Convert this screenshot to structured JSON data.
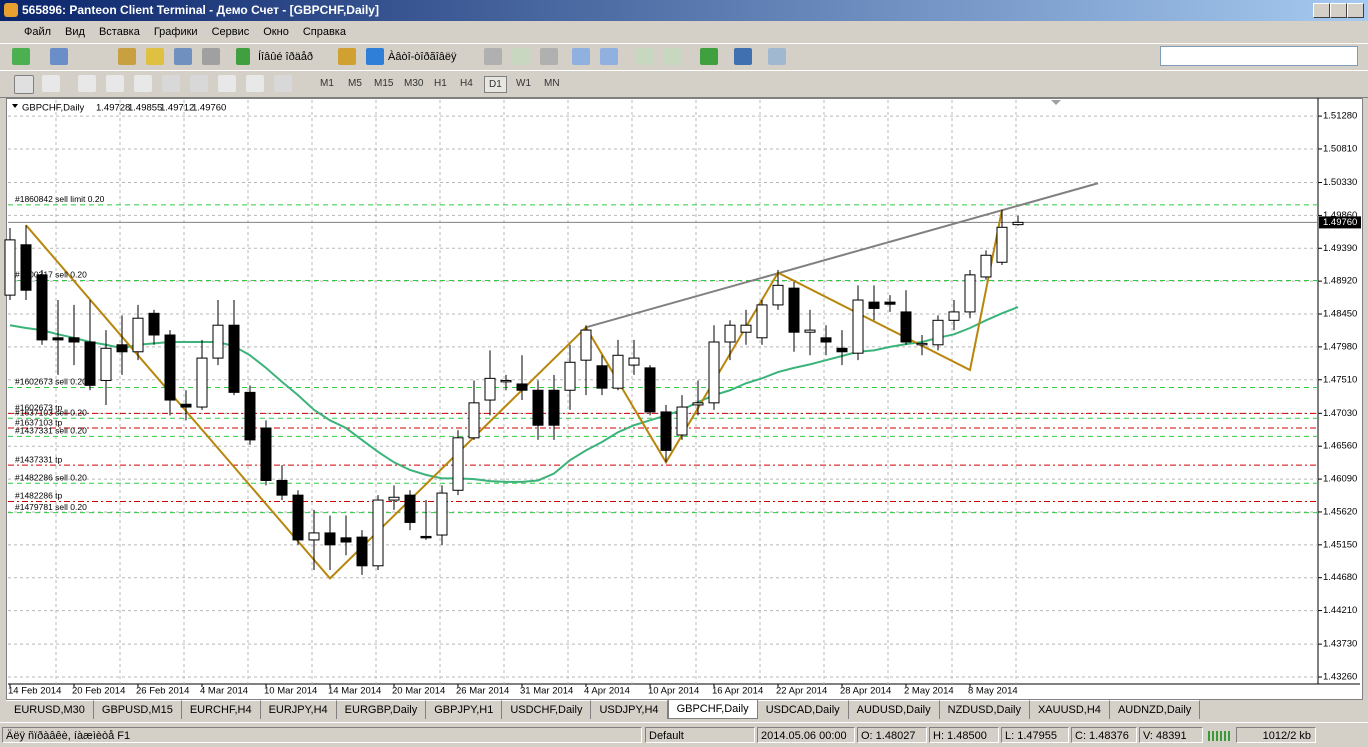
{
  "window": {
    "title": "565896: Panteon Client Terminal - Демо Счет - [GBPCHF,Daily]"
  },
  "menu": [
    "Файл",
    "Вид",
    "Вставка",
    "Графики",
    "Сервис",
    "Окно",
    "Справка"
  ],
  "toolbar": {
    "new_order": "Íîâûé îðäåð",
    "auto_trading": "Àâòî-òîðãîâëÿ",
    "timeframes": [
      "M1",
      "M5",
      "M15",
      "M30",
      "H1",
      "H4",
      "D1",
      "W1",
      "MN"
    ],
    "active_timeframe": 6
  },
  "chart_data": {
    "type": "candlestick",
    "symbol": "GBPCHF,Daily",
    "header_quote": [
      "1.49728",
      "1.49855",
      "1.49712",
      "1.49760"
    ],
    "categories": [
      "14 Feb 2014",
      null,
      null,
      null,
      "20 Feb 2014",
      null,
      null,
      null,
      "26 Feb 2014",
      null,
      null,
      null,
      "4 Mar 2014",
      null,
      null,
      null,
      "10 Mar 2014",
      null,
      null,
      null,
      "14 Mar 2014",
      null,
      null,
      null,
      "20 Mar 2014",
      null,
      null,
      null,
      "26 Mar 2014",
      null,
      null,
      null,
      "31 Mar 2014",
      null,
      null,
      null,
      "4 Apr 2014",
      null,
      null,
      null,
      "10 Apr 2014",
      null,
      null,
      null,
      "16 Apr 2014",
      null,
      null,
      null,
      "22 Apr 2014",
      null,
      null,
      null,
      "28 Apr 2014",
      null,
      null,
      null,
      "2 May 2014",
      null,
      null,
      null,
      "8 May 2014",
      null,
      null,
      null
    ],
    "open": [
      1.4872,
      1.4944,
      1.4901,
      1.4811,
      1.4811,
      1.4805,
      1.475,
      1.4801,
      1.4791,
      1.4846,
      1.4815,
      1.4716,
      1.4712,
      1.4782,
      1.4829,
      1.4733,
      1.4682,
      1.4607,
      1.4586,
      1.4522,
      1.4532,
      1.4525,
      1.4526,
      1.4485,
      1.4579,
      1.4586,
      1.4527,
      1.4529,
      1.4593,
      1.4668,
      1.4722,
      1.4748,
      1.4745,
      1.4736,
      1.4736,
      1.4736,
      1.4779,
      1.4771,
      1.4739,
      1.4772,
      1.4768,
      1.4705,
      1.4672,
      1.4715,
      1.4718,
      1.4805,
      1.4819,
      1.4811,
      1.4858,
      1.4882,
      1.4819,
      1.4811,
      1.4796,
      1.4789,
      1.4862,
      1.4862,
      1.4848,
      1.4801,
      1.4801,
      1.4836,
      1.4848,
      1.4898,
      1.4919,
      1.49728
    ],
    "high": [
      1.4968,
      1.4972,
      1.4908,
      1.4865,
      1.4858,
      1.4865,
      1.4822,
      1.4843,
      1.4858,
      1.4851,
      1.4822,
      1.4736,
      1.4808,
      1.4865,
      1.4865,
      1.4743,
      1.4693,
      1.4629,
      1.4593,
      1.4565,
      1.4557,
      1.4557,
      1.4536,
      1.4586,
      1.46,
      1.4593,
      1.4579,
      1.46,
      1.4679,
      1.475,
      1.4793,
      1.4758,
      1.4786,
      1.475,
      1.4758,
      1.4801,
      1.4829,
      1.4786,
      1.4808,
      1.4808,
      1.4772,
      1.4715,
      1.4729,
      1.475,
      1.4829,
      1.4836,
      1.4851,
      1.4865,
      1.4908,
      1.4891,
      1.4851,
      1.4829,
      1.4822,
      1.4886,
      1.4886,
      1.4872,
      1.4879,
      1.4815,
      1.4843,
      1.4865,
      1.4908,
      1.4936,
      1.4994,
      1.49855
    ],
    "low": [
      1.4865,
      1.4865,
      1.4801,
      1.4758,
      1.4772,
      1.4736,
      1.4715,
      1.4758,
      1.4779,
      1.4801,
      1.47,
      1.4693,
      1.4708,
      1.4772,
      1.4729,
      1.4658,
      1.46,
      1.4579,
      1.4515,
      1.4479,
      1.4479,
      1.45,
      1.4472,
      1.4479,
      1.4565,
      1.4536,
      1.4522,
      1.4515,
      1.4586,
      1.4665,
      1.47,
      1.4736,
      1.4722,
      1.4665,
      1.4665,
      1.4708,
      1.4729,
      1.4729,
      1.4736,
      1.4758,
      1.47,
      1.4633,
      1.4665,
      1.47,
      1.4708,
      1.4779,
      1.4801,
      1.4801,
      1.4851,
      1.4791,
      1.4786,
      1.4786,
      1.4772,
      1.4779,
      1.4836,
      1.4848,
      1.4801,
      1.4786,
      1.4793,
      1.4822,
      1.4839,
      1.4894,
      1.4915,
      1.49712
    ],
    "close": [
      1.4951,
      1.4879,
      1.4808,
      1.4808,
      1.4805,
      1.4743,
      1.4796,
      1.4791,
      1.4839,
      1.4815,
      1.4722,
      1.4712,
      1.4782,
      1.4829,
      1.4733,
      1.4665,
      1.4607,
      1.4586,
      1.4522,
      1.4532,
      1.4515,
      1.4519,
      1.4485,
      1.4579,
      1.4583,
      1.4547,
      1.4525,
      1.4589,
      1.4668,
      1.4718,
      1.4753,
      1.475,
      1.4736,
      1.4686,
      1.4686,
      1.4776,
      1.4822,
      1.4739,
      1.4786,
      1.4782,
      1.4705,
      1.465,
      1.4712,
      1.4718,
      1.4805,
      1.4829,
      1.4829,
      1.4858,
      1.4886,
      1.4819,
      1.4822,
      1.4805,
      1.4791,
      1.4865,
      1.4853,
      1.4859,
      1.4805,
      1.4803,
      1.4836,
      1.4848,
      1.4901,
      1.4929,
      1.4969,
      1.4976
    ],
    "up_color": "#ffffff",
    "down_color": "#000000",
    "ma": {
      "color": "#3cb37a",
      "values": [
        1.4829,
        1.4825,
        1.4822,
        1.4816,
        1.4811,
        1.4805,
        1.4801,
        1.4796,
        1.4801,
        1.4803,
        1.4805,
        1.4805,
        1.4805,
        1.4805,
        1.4799,
        1.4786,
        1.4768,
        1.4748,
        1.4729,
        1.4708,
        1.4693,
        1.4682,
        1.4665,
        1.4648,
        1.4633,
        1.4622,
        1.4615,
        1.461,
        1.461,
        1.4609,
        1.4606,
        1.4605,
        1.4605,
        1.4607,
        1.4617,
        1.4636,
        1.465,
        1.4662,
        1.4676,
        1.4686,
        1.4693,
        1.47,
        1.4708,
        1.4719,
        1.4729,
        1.4736,
        1.4746,
        1.4753,
        1.4762,
        1.4768,
        1.4773,
        1.4779,
        1.4785,
        1.4791,
        1.4793,
        1.4798,
        1.4802,
        1.4805,
        1.4811,
        1.4816,
        1.4825,
        1.4836,
        1.4846,
        1.4855
      ]
    },
    "zigzag": {
      "color": "#b8860b",
      "x": [
        1,
        20,
        36,
        41,
        48,
        60,
        62
      ],
      "values": [
        1.4972,
        1.4467,
        1.4826,
        1.4633,
        1.4904,
        1.4765,
        1.4994
      ]
    },
    "trendline": {
      "color": "#808080",
      "x": [
        36,
        68
      ],
      "values": [
        1.4826,
        1.5032
      ]
    },
    "orders": [
      {
        "label": "#1860842 sell limit 0.20",
        "price": 1.5001,
        "color": "#2ecc40",
        "style": "dashed"
      },
      {
        "label": "#1700317 sell 0.20",
        "price": 1.4893,
        "color": "#2ecc40",
        "style": "dashed"
      },
      {
        "label": "#1602673 sell 0.20",
        "price": 1.474,
        "color": "#2ecc40",
        "style": "dashed"
      },
      {
        "label": "#1602673 tp",
        "price": 1.4703,
        "color": "#d00000",
        "style": "dashdot"
      },
      {
        "label": "#1637103 sell 0.20",
        "price": 1.4696,
        "color": "#2ecc40",
        "style": "dashed"
      },
      {
        "label": "#1637103 tp",
        "price": 1.4682,
        "color": "#d00000",
        "style": "dashdot"
      },
      {
        "label": "#1437331 sell 0.20",
        "price": 1.467,
        "color": "#2ecc40",
        "style": "dashed"
      },
      {
        "label": "#1437331 tp",
        "price": 1.4629,
        "color": "#d00000",
        "style": "dashdot"
      },
      {
        "label": "#1482286 sell 0.20",
        "price": 1.4603,
        "color": "#2ecc40",
        "style": "dashed"
      },
      {
        "label": "#1482286 tp",
        "price": 1.4577,
        "color": "#d00000",
        "style": "dashdot"
      },
      {
        "label": "#1479781 sell 0.20",
        "price": 1.4561,
        "color": "#2ecc40",
        "style": "dashed"
      }
    ],
    "bid": {
      "value": 1.4976,
      "label": "1.49760"
    },
    "ylim": [
      1.4316,
      1.5151
    ],
    "yticks": [
      {
        "value": 1.5128,
        "label": "1.51280"
      },
      {
        "value": 1.5081,
        "label": "1.50810"
      },
      {
        "value": 1.5033,
        "label": "1.50330"
      },
      {
        "value": 1.4986,
        "label": "1.49860"
      },
      {
        "value": 1.4939,
        "label": "1.49390"
      },
      {
        "value": 1.4892,
        "label": "1.48920"
      },
      {
        "value": 1.4845,
        "label": "1.48450"
      },
      {
        "value": 1.4798,
        "label": "1.47980"
      },
      {
        "value": 1.4751,
        "label": "1.47510"
      },
      {
        "value": 1.4703,
        "label": "1.47030"
      },
      {
        "value": 1.4656,
        "label": "1.46560"
      },
      {
        "value": 1.4609,
        "label": "1.46090"
      },
      {
        "value": 1.4562,
        "label": "1.45620"
      },
      {
        "value": 1.4515,
        "label": "1.45150"
      },
      {
        "value": 1.4468,
        "label": "1.44680"
      },
      {
        "value": 1.4421,
        "label": "1.44210"
      },
      {
        "value": 1.4373,
        "label": "1.43730"
      },
      {
        "value": 1.4326,
        "label": "1.43260"
      }
    ],
    "grid": true
  },
  "tabs": {
    "items": [
      "EURUSD,M30",
      "GBPUSD,M15",
      "EURCHF,H4",
      "EURJPY,H4",
      "EURGBP,Daily",
      "GBPJPY,H1",
      "USDCHF,Daily",
      "USDJPY,H4",
      "GBPCHF,Daily",
      "USDCAD,Daily",
      "AUDUSD,Daily",
      "NZDUSD,Daily",
      "XAUUSD,H4",
      "AUDNZD,Daily"
    ],
    "active": 8
  },
  "status": {
    "help": "Äëÿ ñïðàâêè, íàæìèòå F1",
    "profile": "Default",
    "time": "2014.05.06 00:00",
    "open": "O: 1.48027",
    "high": "H: 1.48500",
    "low": "L: 1.47955",
    "close": "C: 1.48376",
    "volume": "V: 48391",
    "traffic": "1012/2 kb"
  }
}
